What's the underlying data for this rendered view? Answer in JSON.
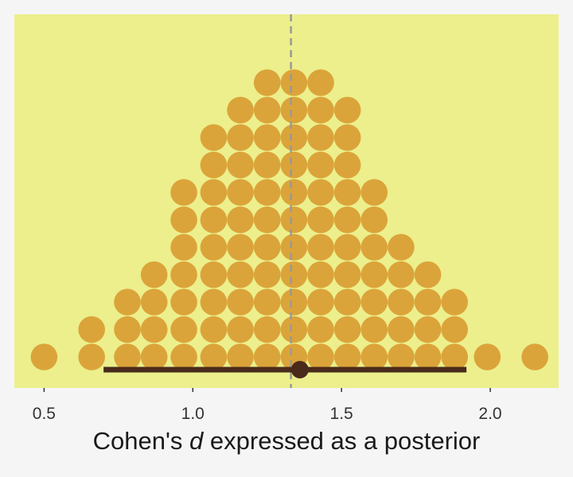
{
  "chart_data": {
    "type": "dotplot",
    "xlabel_parts": [
      "Cohen's ",
      "d",
      " expressed as a posterior"
    ],
    "xlim": [
      0.4,
      2.23
    ],
    "x_ticks": [
      0.5,
      1.0,
      1.5,
      2.0
    ],
    "x_tick_labels": [
      "0.5",
      "1.0",
      "1.5",
      "2.0"
    ],
    "grid": false,
    "legend": "none",
    "dot_stacks": [
      {
        "x": 0.5,
        "count": 1
      },
      {
        "x": 0.66,
        "count": 2
      },
      {
        "x": 0.78,
        "count": 3
      },
      {
        "x": 0.87,
        "count": 4
      },
      {
        "x": 0.97,
        "count": 7
      },
      {
        "x": 1.07,
        "count": 9
      },
      {
        "x": 1.16,
        "count": 10
      },
      {
        "x": 1.25,
        "count": 11
      },
      {
        "x": 1.34,
        "count": 11
      },
      {
        "x": 1.43,
        "count": 11
      },
      {
        "x": 1.52,
        "count": 10
      },
      {
        "x": 1.61,
        "count": 7
      },
      {
        "x": 1.7,
        "count": 5
      },
      {
        "x": 1.79,
        "count": 4
      },
      {
        "x": 1.88,
        "count": 3
      },
      {
        "x": 1.99,
        "count": 1
      },
      {
        "x": 2.15,
        "count": 1
      }
    ],
    "interval": {
      "low": 0.7,
      "high": 1.92,
      "point": 1.36
    },
    "reference_line": {
      "x": 1.33,
      "style": "dashed"
    },
    "colors": {
      "panel": "#ecef8c",
      "dots": "#dba43a",
      "interval": "#4a2a1a",
      "reference_line": "#999999",
      "background": "#f5f5f5"
    }
  }
}
